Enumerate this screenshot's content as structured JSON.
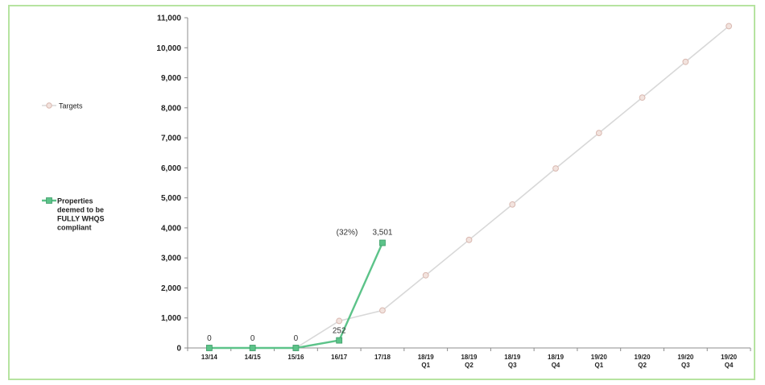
{
  "chart_data": {
    "type": "line",
    "categories": [
      [
        "13/14"
      ],
      [
        "14/15"
      ],
      [
        "15/16"
      ],
      [
        "16/17"
      ],
      [
        "17/18"
      ],
      [
        "18/19",
        "Q1"
      ],
      [
        "18/19",
        "Q2"
      ],
      [
        "18/19",
        "Q3"
      ],
      [
        "18/19",
        "Q4"
      ],
      [
        "19/20",
        "Q1"
      ],
      [
        "19/20",
        "Q2"
      ],
      [
        "19/20",
        "Q3"
      ],
      [
        "19/20",
        "Q4"
      ]
    ],
    "ylim": [
      0,
      11000
    ],
    "yticks": [
      0,
      1000,
      2000,
      3000,
      4000,
      5000,
      6000,
      7000,
      8000,
      9000,
      10000,
      11000
    ],
    "ytick_labels": [
      "0",
      "1,000",
      "2,000",
      "3,000",
      "4,000",
      "5,000",
      "6,000",
      "7,000",
      "8,000",
      "9,000",
      "10,000",
      "11,000"
    ],
    "grid": false,
    "legend_position": "left",
    "series": [
      {
        "name": "Targets",
        "color": "#d9b8b0",
        "line_color": "#d8d8d8",
        "marker": "circle",
        "values": [
          0,
          0,
          0,
          900,
          1250,
          2420,
          3600,
          4780,
          5980,
          7160,
          8340,
          9530,
          10720
        ]
      },
      {
        "name": "Properties deemed to be FULLY WHQS compliant",
        "legend_lines": [
          "Properties",
          "deemed to be",
          "FULLY WHQS",
          "compliant"
        ],
        "color": "#5cc389",
        "marker": "square",
        "values": [
          0,
          0,
          0,
          252,
          3501,
          null,
          null,
          null,
          null,
          null,
          null,
          null,
          null
        ],
        "labels": [
          "0",
          "0",
          "0",
          "252",
          "3,501",
          null,
          null,
          null,
          null,
          null,
          null,
          null,
          null
        ]
      }
    ],
    "annotations": [
      {
        "text": "(32%)",
        "category_index": 4
      }
    ]
  }
}
